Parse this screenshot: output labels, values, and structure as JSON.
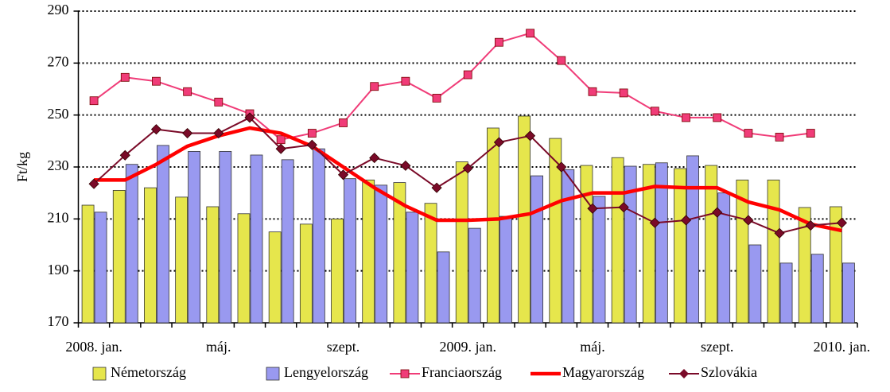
{
  "chart_data": {
    "type": "bar",
    "y_label": "Ft/kg",
    "categories": [
      "2008. jan.",
      null,
      null,
      null,
      "máj.",
      null,
      null,
      null,
      "szept.",
      null,
      null,
      null,
      "2009. jan.",
      null,
      null,
      null,
      "máj.",
      null,
      null,
      null,
      "szept.",
      null,
      null,
      null,
      "2010. jan."
    ],
    "ylim": [
      170,
      290
    ],
    "yticks": [
      170,
      190,
      210,
      230,
      250,
      270,
      290
    ],
    "grid": true,
    "legend": "bottom",
    "series": [
      {
        "name": "Németország",
        "type": "bar",
        "color": "#e6e64c",
        "values": [
          215.3,
          221,
          222,
          218.4,
          214.7,
          212,
          205,
          208,
          210,
          225,
          224,
          216,
          232,
          245,
          249.6,
          241,
          230.6,
          233.6,
          231,
          229.4,
          230.6,
          225,
          225,
          214.4,
          214.7
        ]
      },
      {
        "name": "Lengyelország",
        "type": "bar",
        "color": "#9999f0",
        "values": [
          212.6,
          231,
          238.3,
          236,
          236,
          234.6,
          232.8,
          237,
          225.5,
          223,
          212.6,
          197.3,
          206.4,
          211,
          226.6,
          229,
          218.7,
          230.3,
          231.6,
          234.3,
          220,
          200,
          193,
          196.4,
          193
        ]
      },
      {
        "name": "Franciaország",
        "type": "line",
        "marker": "square",
        "color": "#f03c78",
        "values": [
          255.5,
          264.5,
          263,
          259,
          255,
          250.5,
          240.5,
          243,
          247,
          261,
          263,
          256.5,
          265.5,
          278,
          281.5,
          271,
          259,
          258.5,
          251.5,
          249,
          249,
          243,
          241.5,
          243,
          null
        ]
      },
      {
        "name": "Magyarország",
        "type": "line",
        "marker": "none",
        "color": "#ff0000",
        "values": [
          225,
          225,
          231,
          238,
          242,
          245,
          243,
          238,
          230,
          222,
          215,
          209.5,
          209.5,
          210,
          212,
          217,
          220,
          220,
          222.5,
          222,
          222,
          216.5,
          213.5,
          208,
          205.5
        ]
      },
      {
        "name": "Szlovákia",
        "type": "line",
        "marker": "diamond",
        "color": "#7a0a28",
        "values": [
          223.5,
          234.5,
          244.5,
          243,
          243,
          249,
          237,
          238.5,
          227,
          233.5,
          230.5,
          222,
          229.5,
          239.5,
          242,
          230,
          214,
          214.5,
          208.5,
          209.5,
          212.5,
          209.5,
          204.5,
          207.5,
          208.5
        ]
      }
    ]
  }
}
